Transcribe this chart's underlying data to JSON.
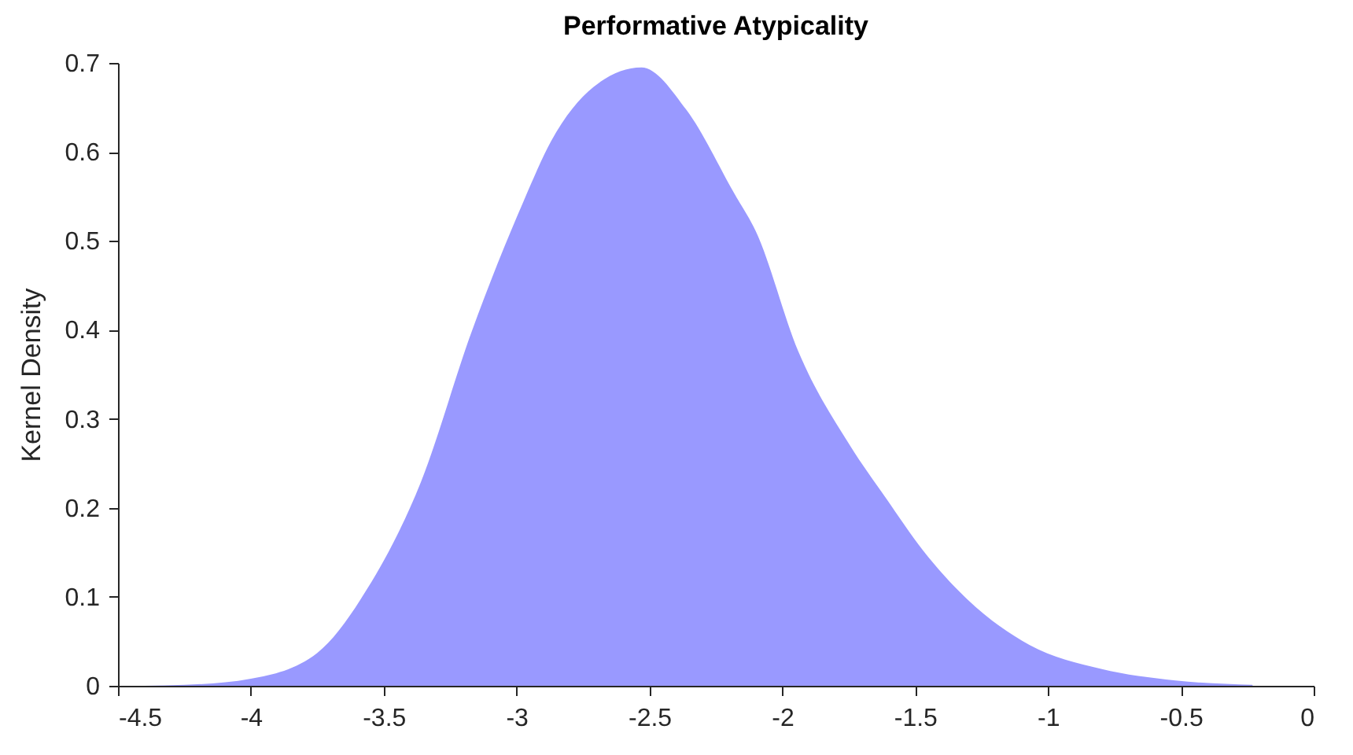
{
  "chart_data": {
    "type": "area",
    "title": "Performative Atypicality",
    "ylabel": "Kernel Density",
    "x": [
      -4.4,
      -4.25,
      -4.0,
      -3.75,
      -3.56,
      -3.36,
      -3.17,
      -2.97,
      -2.87,
      -2.71,
      -2.53,
      -2.36,
      -2.18,
      -2.1,
      -1.94,
      -1.745,
      -1.61,
      -1.47,
      -1.31,
      -1.07,
      -0.8,
      -0.52,
      -0.23
    ],
    "series": [
      {
        "color": "#9999ff",
        "values": [
          0,
          0.001,
          0.008,
          0.037,
          0.11,
          0.229,
          0.397,
          0.547,
          0.612,
          0.673,
          0.695,
          0.647,
          0.553,
          0.511,
          0.376,
          0.27,
          0.211,
          0.152,
          0.099,
          0.046,
          0.019,
          0.006,
          0.001
        ]
      }
    ],
    "xlim": [
      -4.5,
      0
    ],
    "xticks": [
      -4.5,
      -4,
      -3.5,
      -3,
      -2.5,
      -2,
      -1.5,
      -1,
      -0.5,
      0
    ],
    "ylim": [
      0,
      0.7
    ],
    "yticks": [
      0,
      0.1,
      0.2,
      0.3,
      0.4,
      0.5,
      0.6,
      0.7
    ],
    "grid": false
  }
}
